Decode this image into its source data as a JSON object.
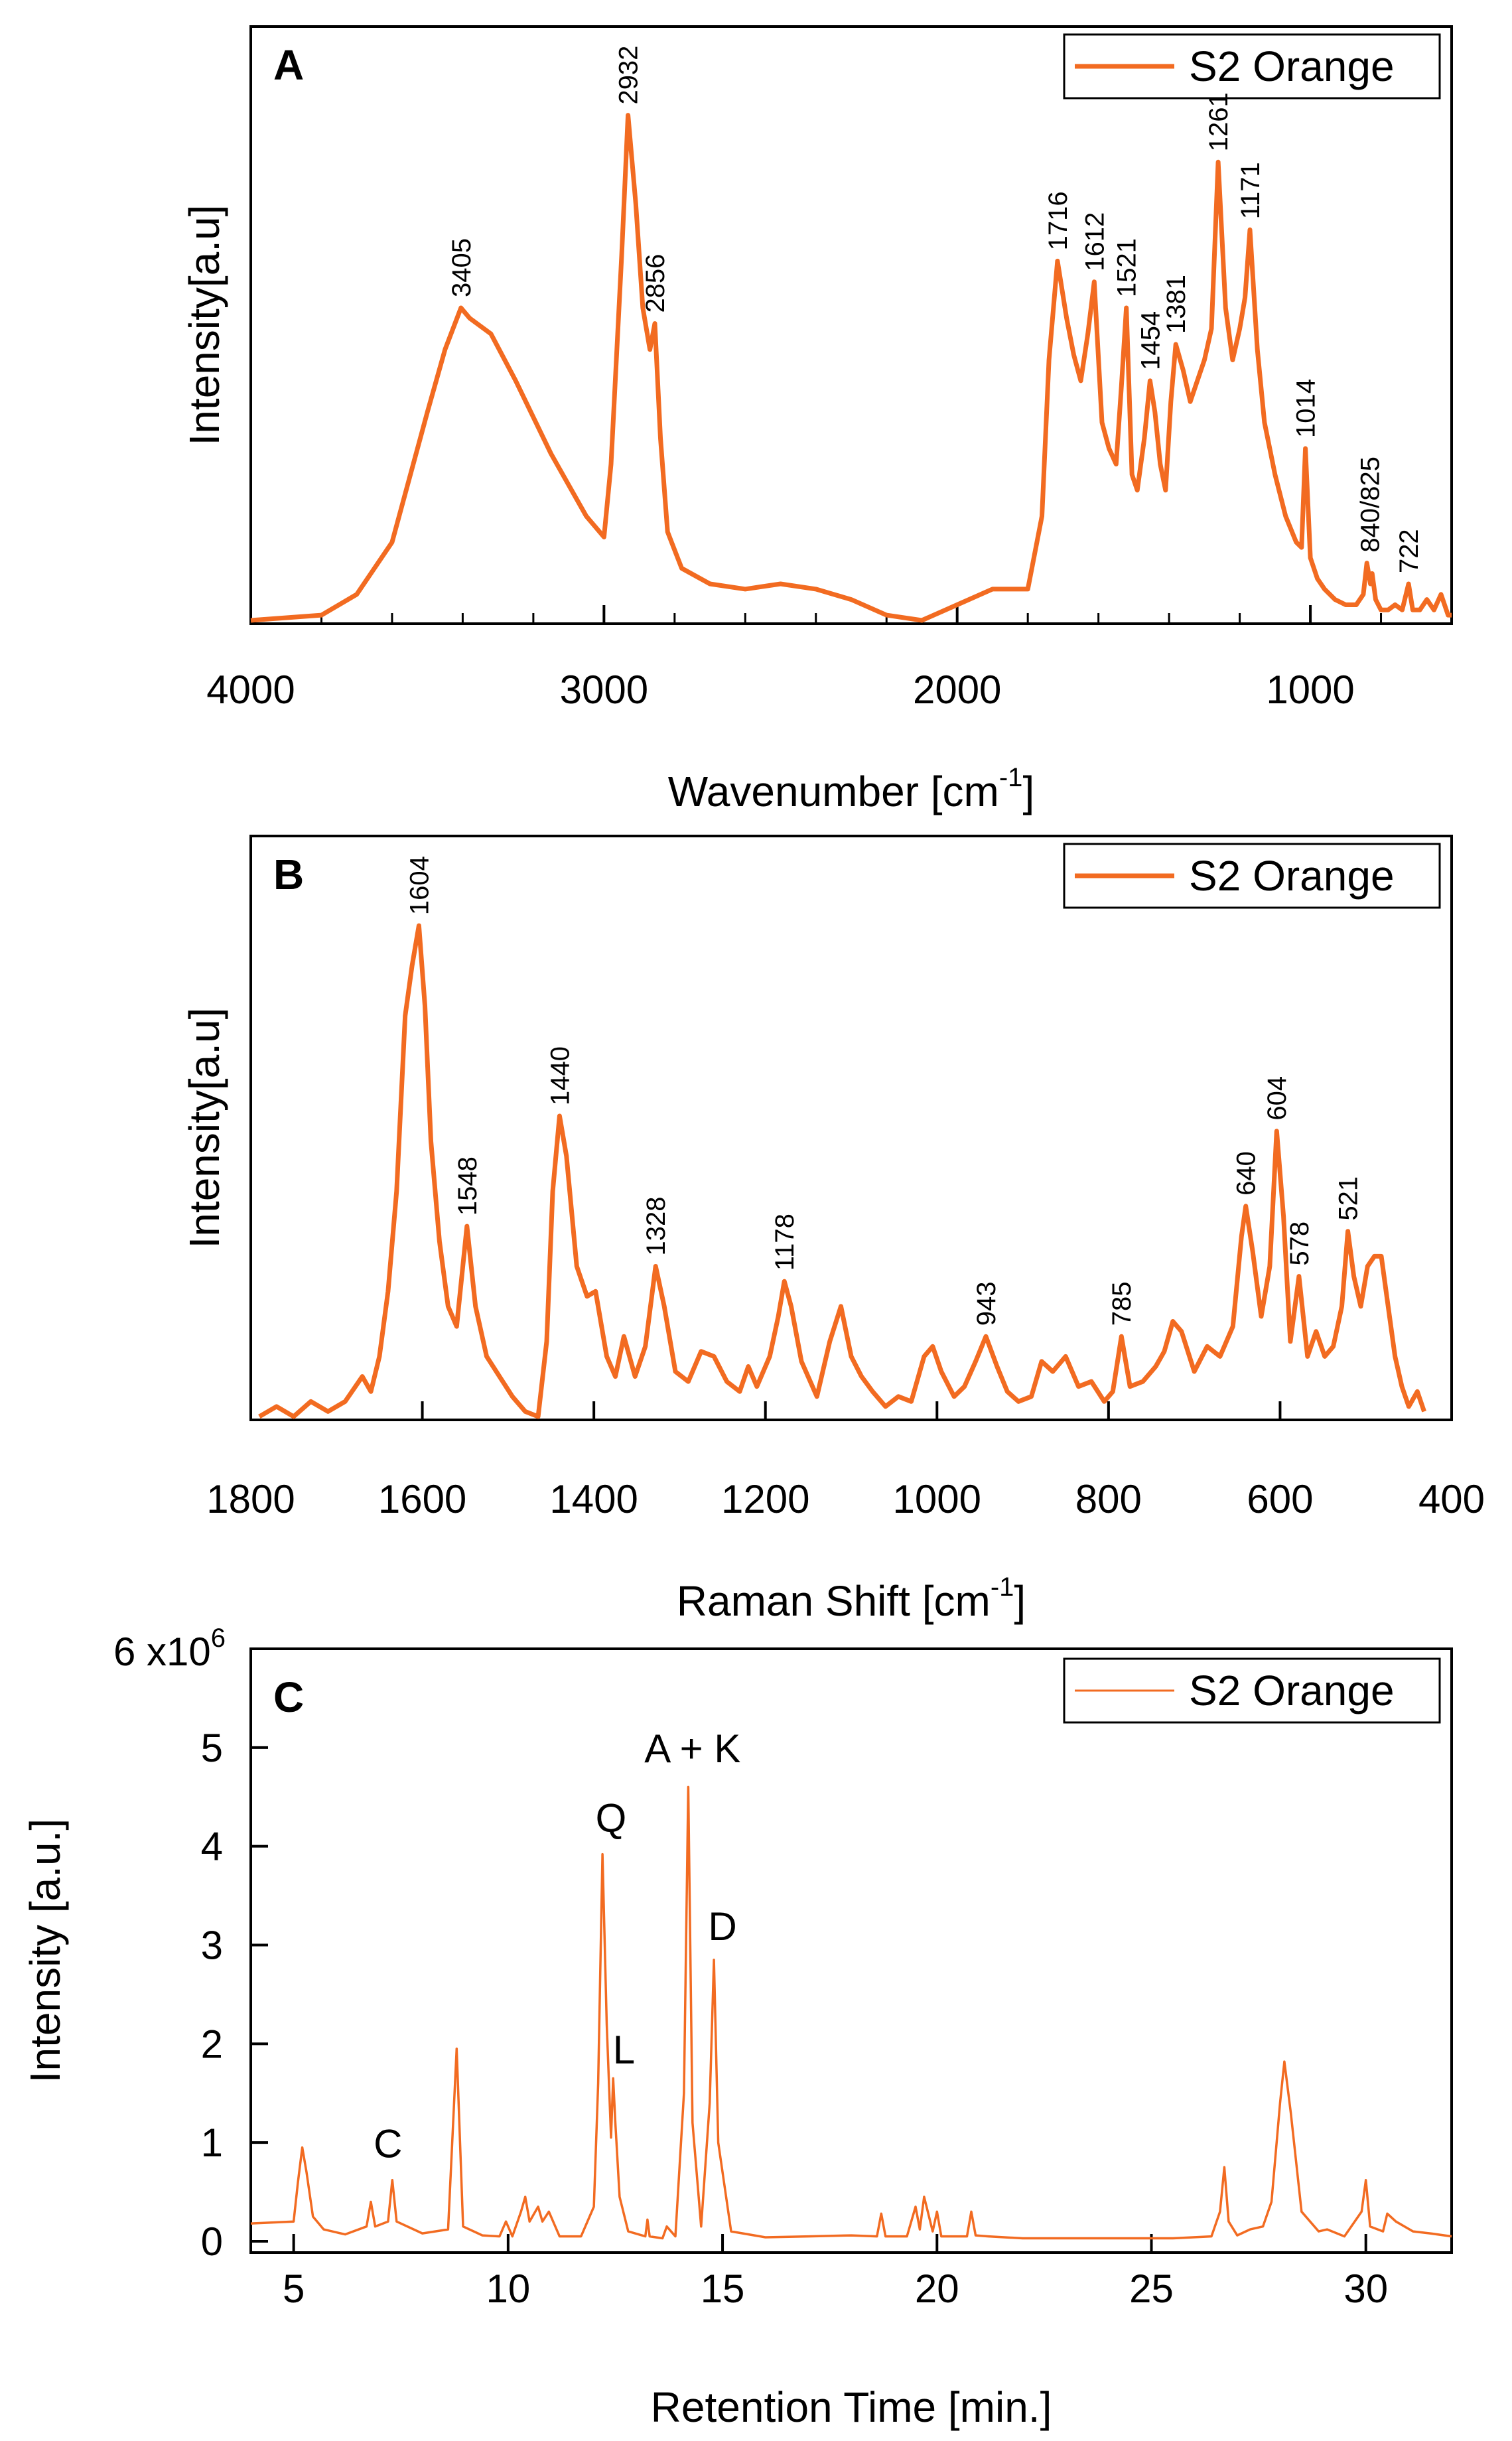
{
  "colors": {
    "series": "#F26B21",
    "axis": "#000000",
    "background": "#ffffff"
  },
  "chart_data": [
    {
      "type": "line",
      "panel_label": "A",
      "xlabel": "Wavenumber [cm",
      "xlabel_sup": "-1",
      "xlabel_close": "]",
      "ylabel": "Intensity[a.u]",
      "xlim": [
        4000,
        600
      ],
      "x_reversed": true,
      "ylim": [
        0,
        1
      ],
      "y_tick_labels_shown": false,
      "x_ticks": [
        4000,
        3000,
        2000,
        1000
      ],
      "x_minor_ticks": [
        3800,
        3600,
        3400,
        3200,
        2800,
        2600,
        2400,
        2200,
        1800,
        1600,
        1400,
        1200,
        800
      ],
      "legend": {
        "label": "S2 Orange",
        "position": "top-right"
      },
      "series": [
        {
          "name": "S2 Orange",
          "x": [
            4000,
            3800,
            3700,
            3600,
            3500,
            3450,
            3405,
            3380,
            3320,
            3250,
            3150,
            3050,
            3000,
            2980,
            2950,
            2932,
            2910,
            2890,
            2870,
            2856,
            2840,
            2820,
            2780,
            2700,
            2600,
            2500,
            2400,
            2300,
            2200,
            2100,
            2000,
            1900,
            1800,
            1760,
            1740,
            1716,
            1690,
            1670,
            1650,
            1630,
            1612,
            1590,
            1570,
            1550,
            1535,
            1521,
            1505,
            1490,
            1470,
            1454,
            1440,
            1425,
            1410,
            1395,
            1381,
            1360,
            1340,
            1320,
            1300,
            1280,
            1261,
            1240,
            1220,
            1200,
            1185,
            1171,
            1150,
            1130,
            1100,
            1070,
            1040,
            1025,
            1014,
            1000,
            980,
            960,
            930,
            900,
            870,
            850,
            840,
            830,
            825,
            815,
            800,
            780,
            760,
            740,
            722,
            710,
            690,
            670,
            650,
            630,
            610,
            600
          ],
          "values": [
            0.0,
            0.01,
            0.05,
            0.15,
            0.4,
            0.52,
            0.6,
            0.58,
            0.55,
            0.46,
            0.32,
            0.2,
            0.16,
            0.3,
            0.7,
            0.97,
            0.8,
            0.6,
            0.52,
            0.57,
            0.35,
            0.17,
            0.1,
            0.07,
            0.06,
            0.07,
            0.06,
            0.04,
            0.01,
            0.0,
            0.03,
            0.06,
            0.06,
            0.2,
            0.5,
            0.69,
            0.58,
            0.51,
            0.46,
            0.55,
            0.65,
            0.38,
            0.33,
            0.3,
            0.45,
            0.6,
            0.28,
            0.25,
            0.35,
            0.46,
            0.4,
            0.3,
            0.25,
            0.42,
            0.53,
            0.48,
            0.42,
            0.46,
            0.5,
            0.56,
            0.88,
            0.6,
            0.5,
            0.56,
            0.62,
            0.75,
            0.52,
            0.38,
            0.28,
            0.2,
            0.15,
            0.14,
            0.33,
            0.12,
            0.08,
            0.06,
            0.04,
            0.03,
            0.03,
            0.05,
            0.11,
            0.07,
            0.09,
            0.04,
            0.02,
            0.02,
            0.03,
            0.02,
            0.07,
            0.02,
            0.02,
            0.04,
            0.02,
            0.05,
            0.01,
            0.01
          ]
        }
      ],
      "annotations": [
        {
          "label": "3405",
          "x": 3405,
          "y": 0.6
        },
        {
          "label": "2932",
          "x": 2932,
          "y": 0.97
        },
        {
          "label": "2856",
          "x": 2856,
          "y": 0.57
        },
        {
          "label": "1716",
          "x": 1716,
          "y": 0.69
        },
        {
          "label": "1612",
          "x": 1612,
          "y": 0.65
        },
        {
          "label": "1521",
          "x": 1521,
          "y": 0.6
        },
        {
          "label": "1454",
          "x": 1454,
          "y": 0.46
        },
        {
          "label": "1381",
          "x": 1381,
          "y": 0.53
        },
        {
          "label": "1261",
          "x": 1261,
          "y": 0.88
        },
        {
          "label": "1171",
          "x": 1171,
          "y": 0.75
        },
        {
          "label": "1014",
          "x": 1014,
          "y": 0.33
        },
        {
          "label": "840/825",
          "x": 832,
          "y": 0.11
        },
        {
          "label": "722",
          "x": 722,
          "y": 0.07
        }
      ]
    },
    {
      "type": "line",
      "panel_label": "B",
      "xlabel": "Raman Shift [cm",
      "xlabel_sup": "-1",
      "xlabel_close": "]",
      "ylabel": "Intensity[a.u]",
      "xlim": [
        1800,
        400
      ],
      "x_reversed": true,
      "ylim": [
        0,
        1
      ],
      "y_tick_labels_shown": false,
      "x_ticks": [
        1800,
        1600,
        1400,
        1200,
        1000,
        800,
        600,
        400
      ],
      "legend": {
        "label": "S2 Orange",
        "position": "top-right"
      },
      "series": [
        {
          "name": "S2 Orange",
          "x": [
            1790,
            1770,
            1750,
            1730,
            1710,
            1690,
            1670,
            1660,
            1650,
            1640,
            1630,
            1620,
            1612,
            1604,
            1597,
            1590,
            1580,
            1570,
            1560,
            1548,
            1538,
            1525,
            1510,
            1495,
            1480,
            1465,
            1455,
            1448,
            1440,
            1432,
            1420,
            1408,
            1398,
            1385,
            1375,
            1365,
            1352,
            1340,
            1328,
            1318,
            1305,
            1290,
            1275,
            1260,
            1245,
            1230,
            1220,
            1210,
            1195,
            1185,
            1178,
            1170,
            1158,
            1140,
            1125,
            1112,
            1100,
            1088,
            1075,
            1060,
            1045,
            1030,
            1015,
            1005,
            995,
            980,
            968,
            955,
            943,
            930,
            918,
            905,
            890,
            878,
            865,
            850,
            835,
            820,
            805,
            795,
            785,
            775,
            760,
            745,
            735,
            725,
            715,
            700,
            685,
            670,
            655,
            645,
            640,
            632,
            622,
            612,
            604,
            596,
            588,
            578,
            568,
            558,
            548,
            538,
            528,
            521,
            514,
            506,
            498,
            490,
            482,
            474,
            466,
            458,
            450,
            440,
            432
          ],
          "values": [
            0.0,
            0.02,
            0.0,
            0.03,
            0.01,
            0.03,
            0.08,
            0.05,
            0.12,
            0.25,
            0.45,
            0.8,
            0.9,
            0.98,
            0.82,
            0.55,
            0.35,
            0.22,
            0.18,
            0.38,
            0.22,
            0.12,
            0.08,
            0.04,
            0.01,
            0.0,
            0.15,
            0.45,
            0.6,
            0.52,
            0.3,
            0.24,
            0.25,
            0.12,
            0.08,
            0.16,
            0.08,
            0.14,
            0.3,
            0.22,
            0.09,
            0.07,
            0.13,
            0.12,
            0.07,
            0.05,
            0.1,
            0.06,
            0.12,
            0.2,
            0.27,
            0.22,
            0.11,
            0.04,
            0.15,
            0.22,
            0.12,
            0.08,
            0.05,
            0.02,
            0.04,
            0.03,
            0.12,
            0.14,
            0.09,
            0.04,
            0.06,
            0.11,
            0.16,
            0.1,
            0.05,
            0.03,
            0.04,
            0.11,
            0.09,
            0.12,
            0.06,
            0.07,
            0.03,
            0.05,
            0.16,
            0.06,
            0.07,
            0.1,
            0.13,
            0.19,
            0.17,
            0.09,
            0.14,
            0.12,
            0.18,
            0.36,
            0.42,
            0.33,
            0.2,
            0.3,
            0.57,
            0.4,
            0.15,
            0.28,
            0.12,
            0.17,
            0.12,
            0.14,
            0.22,
            0.37,
            0.28,
            0.22,
            0.3,
            0.32,
            0.32,
            0.22,
            0.12,
            0.06,
            0.02,
            0.05,
            0.01
          ]
        }
      ],
      "annotations": [
        {
          "label": "1604",
          "x": 1604,
          "y": 0.98
        },
        {
          "label": "1548",
          "x": 1548,
          "y": 0.38
        },
        {
          "label": "1440",
          "x": 1440,
          "y": 0.6
        },
        {
          "label": "1328",
          "x": 1328,
          "y": 0.3
        },
        {
          "label": "1178",
          "x": 1178,
          "y": 0.27
        },
        {
          "label": "943",
          "x": 943,
          "y": 0.16
        },
        {
          "label": "785",
          "x": 785,
          "y": 0.16
        },
        {
          "label": "640",
          "x": 640,
          "y": 0.42
        },
        {
          "label": "604",
          "x": 604,
          "y": 0.57
        },
        {
          "label": "578",
          "x": 578,
          "y": 0.28
        },
        {
          "label": "521",
          "x": 521,
          "y": 0.37
        }
      ]
    },
    {
      "type": "line",
      "panel_label": "C",
      "xlabel": "Retention Time [min.]",
      "ylabel": "Intensity [a.u.]",
      "xlim": [
        4,
        32
      ],
      "ylim": [
        0,
        6
      ],
      "y_multiplier_label": "6 x10",
      "y_multiplier_sup": "6",
      "x_ticks": [
        5,
        10,
        15,
        20,
        25,
        30
      ],
      "y_ticks": [
        0,
        1,
        2,
        3,
        4,
        5
      ],
      "y_tick_labels": [
        "0",
        "1",
        "2",
        "3",
        "4",
        "5"
      ],
      "legend": {
        "label": "S2 Orange",
        "position": "top-right"
      },
      "series": [
        {
          "name": "S2 Orange",
          "x": [
            4.0,
            5.0,
            5.1,
            5.2,
            5.3,
            5.45,
            5.7,
            6.2,
            6.7,
            6.8,
            6.9,
            7.2,
            7.3,
            7.4,
            8.0,
            8.6,
            8.8,
            8.95,
            9.4,
            9.8,
            9.95,
            10.1,
            10.3,
            10.4,
            10.5,
            10.7,
            10.8,
            10.95,
            11.2,
            11.7,
            12.0,
            12.1,
            12.2,
            12.3,
            12.4,
            12.45,
            12.5,
            12.6,
            12.8,
            13.2,
            13.25,
            13.3,
            13.6,
            13.7,
            13.9,
            14.1,
            14.2,
            14.3,
            14.5,
            14.7,
            14.8,
            14.9,
            15.2,
            16.0,
            17.0,
            18.0,
            18.6,
            18.7,
            18.8,
            19.3,
            19.5,
            19.6,
            19.7,
            19.9,
            20.0,
            20.1,
            20.7,
            20.8,
            20.9,
            21.2,
            22.0,
            23.5,
            24.5,
            25.5,
            26.4,
            26.6,
            26.7,
            26.8,
            27.0,
            27.3,
            27.6,
            27.8,
            28.0,
            28.1,
            28.25,
            28.5,
            28.9,
            29.1,
            29.5,
            29.9,
            30.0,
            30.1,
            30.4,
            30.5,
            30.7,
            31.1,
            31.5,
            32.0
          ],
          "values": [
            0.18,
            0.2,
            0.6,
            0.95,
            0.7,
            0.25,
            0.12,
            0.07,
            0.15,
            0.4,
            0.15,
            0.2,
            0.62,
            0.2,
            0.08,
            0.12,
            1.95,
            0.15,
            0.06,
            0.05,
            0.2,
            0.05,
            0.3,
            0.45,
            0.2,
            0.35,
            0.2,
            0.3,
            0.05,
            0.05,
            0.35,
            1.6,
            3.92,
            2.2,
            1.05,
            1.65,
            1.2,
            0.45,
            0.1,
            0.05,
            0.22,
            0.05,
            0.03,
            0.15,
            0.05,
            1.5,
            4.6,
            1.2,
            0.15,
            1.4,
            2.85,
            1.0,
            0.1,
            0.04,
            0.05,
            0.06,
            0.05,
            0.28,
            0.05,
            0.05,
            0.35,
            0.12,
            0.45,
            0.1,
            0.3,
            0.05,
            0.05,
            0.3,
            0.06,
            0.05,
            0.03,
            0.03,
            0.03,
            0.03,
            0.05,
            0.3,
            0.75,
            0.2,
            0.06,
            0.12,
            0.15,
            0.4,
            1.4,
            1.82,
            1.3,
            0.3,
            0.1,
            0.12,
            0.05,
            0.3,
            0.62,
            0.15,
            0.1,
            0.28,
            0.2,
            0.1,
            0.08,
            0.05
          ]
        }
      ],
      "annotations": [
        {
          "label": "C",
          "x": 7.2,
          "y": 0.85
        },
        {
          "label": "Q",
          "x": 12.4,
          "y": 4.15
        },
        {
          "label": "L",
          "x": 12.7,
          "y": 1.8
        },
        {
          "label": "A + K",
          "x": 14.3,
          "y": 4.85
        },
        {
          "label": "D",
          "x": 15.0,
          "y": 3.05
        }
      ]
    }
  ]
}
